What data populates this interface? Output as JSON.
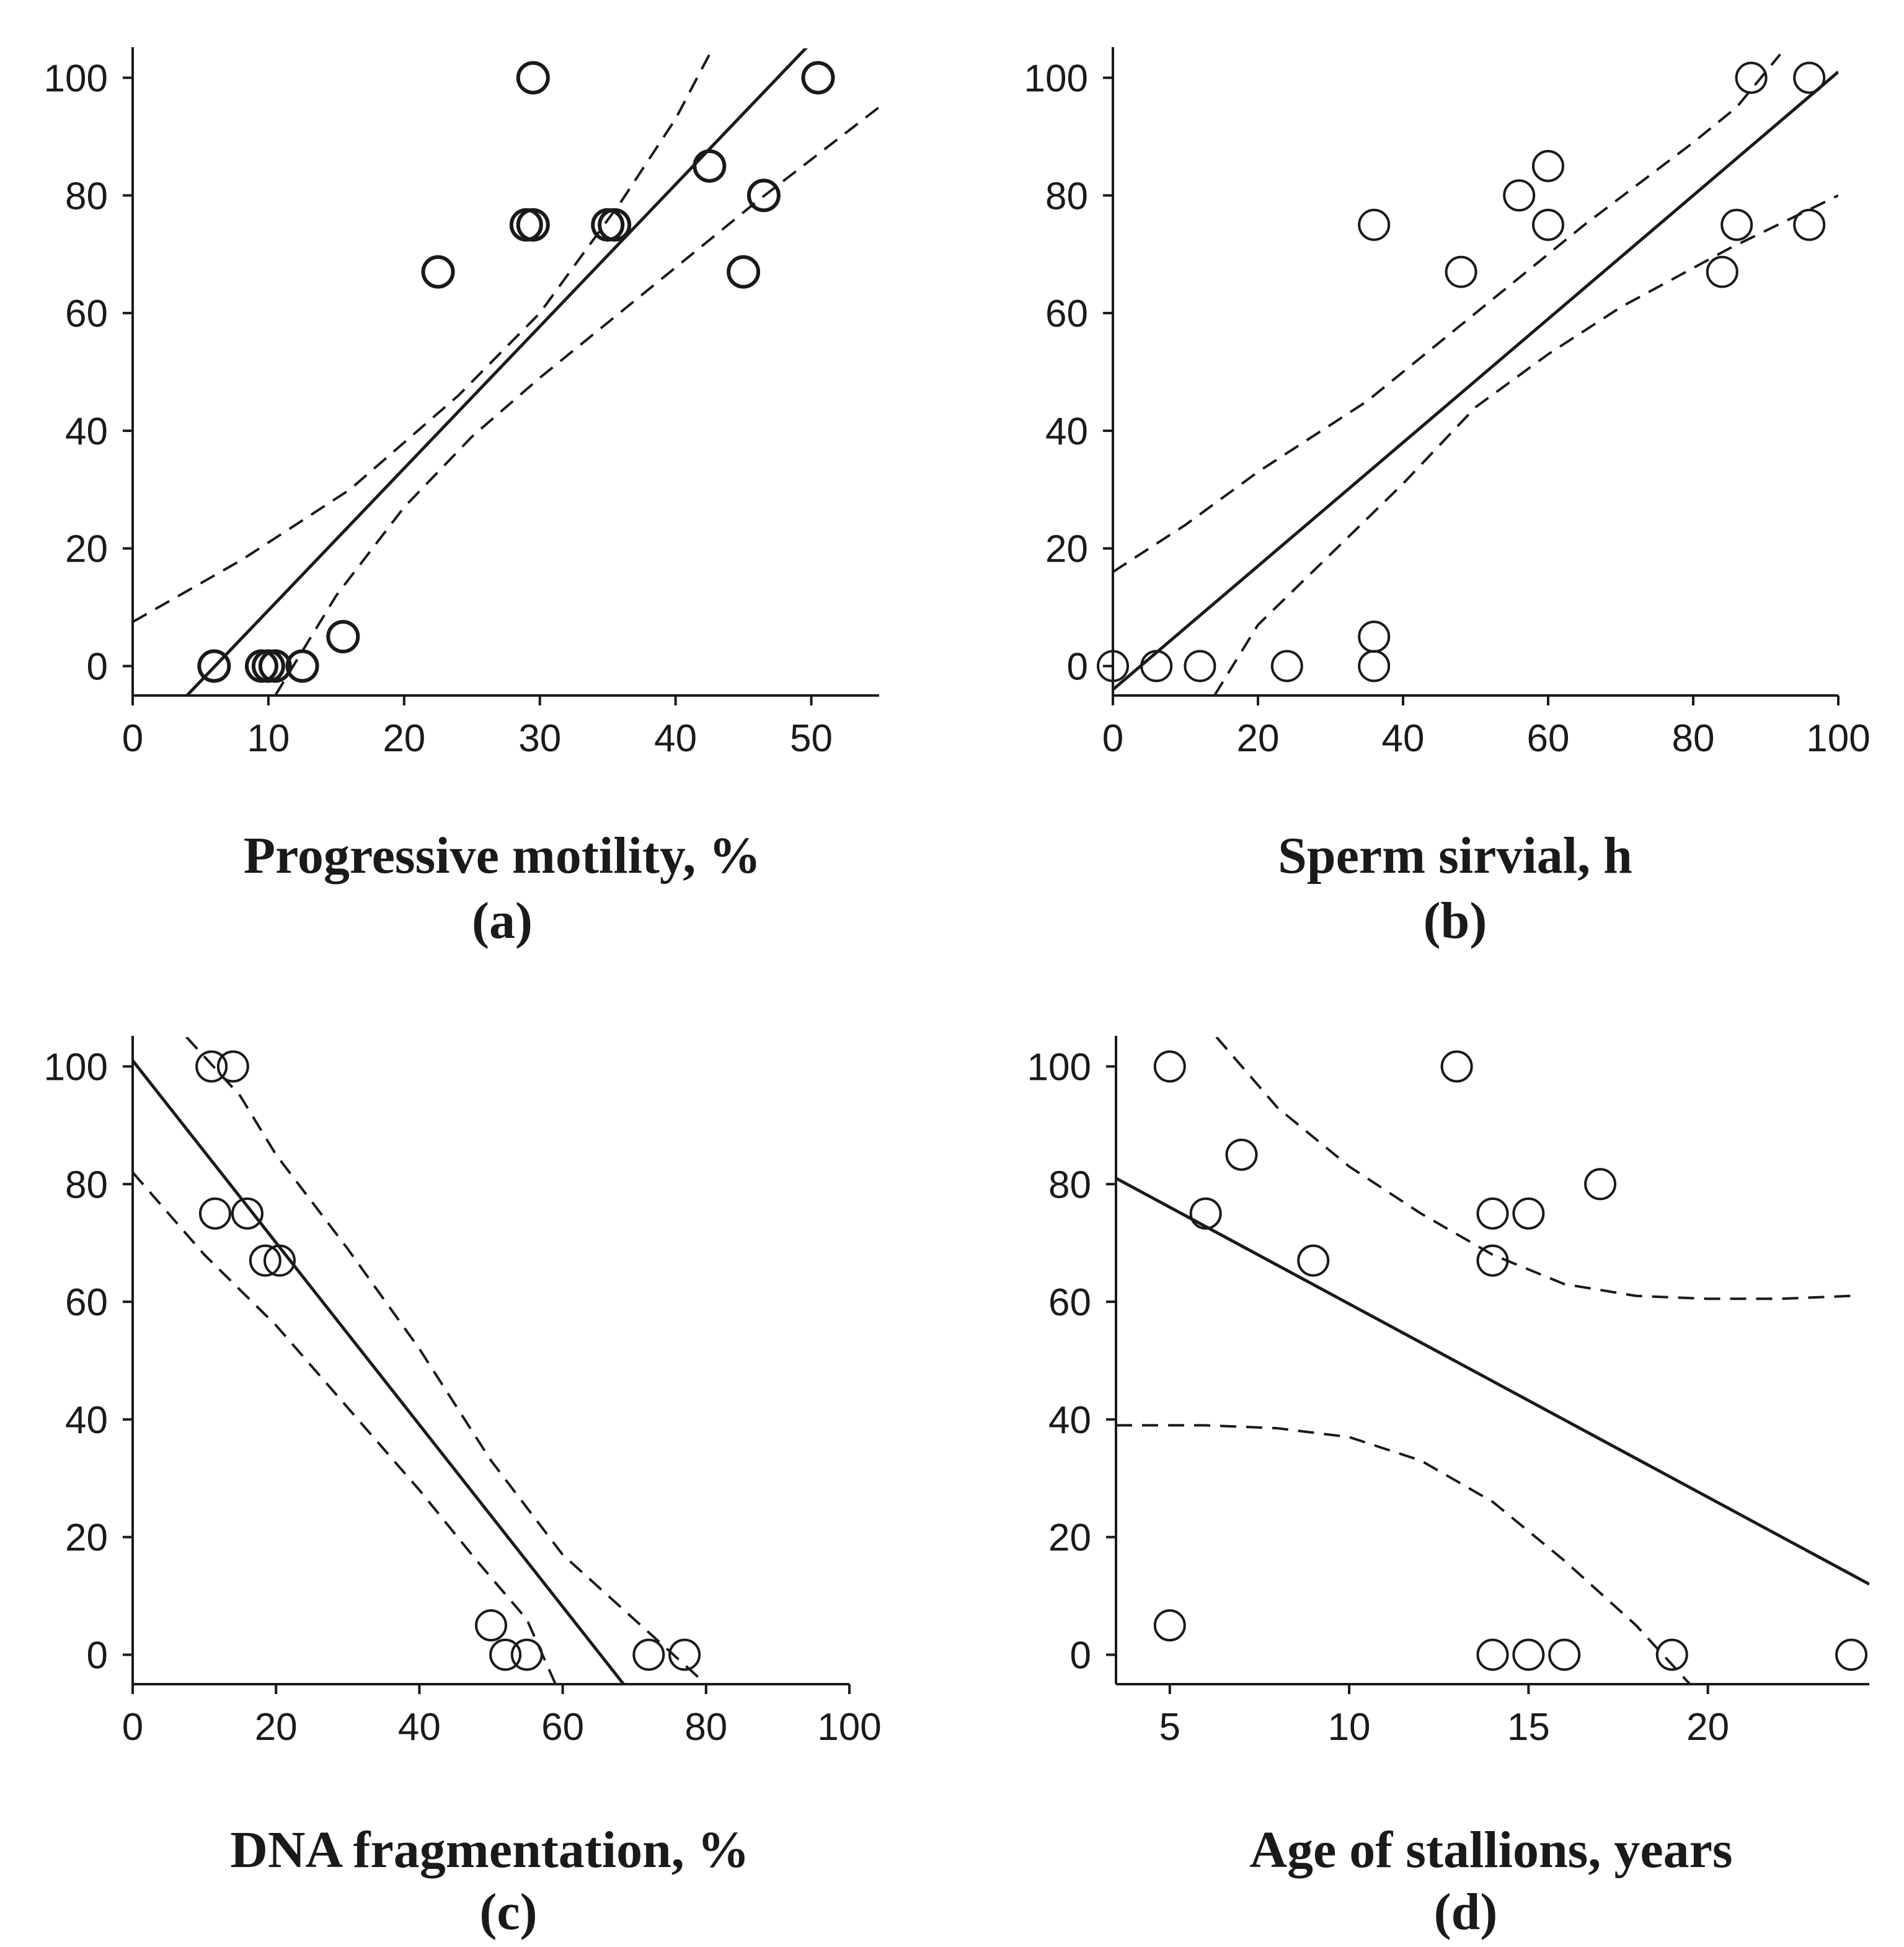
{
  "figure_title": "",
  "chart_data": [
    {
      "id": "a",
      "type": "scatter",
      "panel_label": "(a)",
      "xlabel": "Progressive motility, %",
      "ylabel": "",
      "xlim": [
        0,
        55
      ],
      "ylim": [
        -5,
        105
      ],
      "xticks": [
        0,
        10,
        20,
        30,
        40,
        50
      ],
      "yticks": [
        0,
        20,
        40,
        60,
        80,
        100
      ],
      "points": [
        {
          "x": 6,
          "y": 0
        },
        {
          "x": 9.5,
          "y": 0
        },
        {
          "x": 10,
          "y": 0
        },
        {
          "x": 10.5,
          "y": 0
        },
        {
          "x": 12.5,
          "y": 0
        },
        {
          "x": 15.5,
          "y": 5
        },
        {
          "x": 22.5,
          "y": 67
        },
        {
          "x": 29,
          "y": 75
        },
        {
          "x": 29.5,
          "y": 75
        },
        {
          "x": 29.5,
          "y": 100
        },
        {
          "x": 35,
          "y": 75
        },
        {
          "x": 35.5,
          "y": 75
        },
        {
          "x": 42.5,
          "y": 85
        },
        {
          "x": 45,
          "y": 67
        },
        {
          "x": 46.5,
          "y": 80
        },
        {
          "x": 50.5,
          "y": 100
        }
      ],
      "fit_line": [
        [
          4,
          -5
        ],
        [
          50,
          106
        ]
      ],
      "ci_upper": [
        [
          0,
          7.5
        ],
        [
          8,
          18
        ],
        [
          16,
          30
        ],
        [
          24,
          46
        ],
        [
          30,
          60
        ],
        [
          36,
          79
        ],
        [
          40,
          93
        ],
        [
          42.5,
          104
        ]
      ],
      "ci_lower": [
        [
          10.5,
          -5
        ],
        [
          15,
          12
        ],
        [
          20,
          27
        ],
        [
          25,
          39
        ],
        [
          30,
          49
        ],
        [
          38,
          64
        ],
        [
          46,
          79
        ],
        [
          55,
          95
        ]
      ]
    },
    {
      "id": "b",
      "type": "scatter",
      "panel_label": "(b)",
      "xlabel": "Sperm sirvial, h",
      "ylabel": "",
      "xlim": [
        0,
        100
      ],
      "ylim": [
        -5,
        105
      ],
      "xticks": [
        0,
        20,
        40,
        60,
        80,
        100
      ],
      "yticks": [
        0,
        20,
        40,
        60,
        80,
        100
      ],
      "points": [
        {
          "x": 0,
          "y": 0
        },
        {
          "x": 6,
          "y": 0
        },
        {
          "x": 12,
          "y": 0
        },
        {
          "x": 24,
          "y": 0
        },
        {
          "x": 36,
          "y": 0
        },
        {
          "x": 36,
          "y": 5
        },
        {
          "x": 36,
          "y": 75
        },
        {
          "x": 48,
          "y": 67
        },
        {
          "x": 56,
          "y": 80
        },
        {
          "x": 60,
          "y": 75
        },
        {
          "x": 60,
          "y": 85
        },
        {
          "x": 84,
          "y": 67
        },
        {
          "x": 86,
          "y": 75
        },
        {
          "x": 88,
          "y": 100
        },
        {
          "x": 96,
          "y": 100
        },
        {
          "x": 96,
          "y": 75
        }
      ],
      "fit_line": [
        [
          0,
          -4
        ],
        [
          100,
          101
        ]
      ],
      "ci_upper": [
        [
          0,
          16
        ],
        [
          10,
          24
        ],
        [
          20,
          33
        ],
        [
          35,
          45
        ],
        [
          50,
          60
        ],
        [
          65,
          75
        ],
        [
          80,
          89
        ],
        [
          86,
          95
        ],
        [
          92,
          104
        ]
      ],
      "ci_lower": [
        [
          14,
          -5
        ],
        [
          20,
          7
        ],
        [
          30,
          19
        ],
        [
          40,
          31
        ],
        [
          50,
          44
        ],
        [
          60,
          53
        ],
        [
          70,
          61
        ],
        [
          85,
          71
        ],
        [
          100,
          80
        ]
      ]
    },
    {
      "id": "c",
      "type": "scatter",
      "panel_label": "(c)",
      "xlabel": "DNA fragmentation, %",
      "ylabel": "",
      "xlim": [
        0,
        100
      ],
      "ylim": [
        -5,
        105
      ],
      "xticks": [
        0,
        20,
        40,
        60,
        80,
        100
      ],
      "yticks": [
        0,
        20,
        40,
        60,
        80,
        100
      ],
      "points": [
        {
          "x": 11,
          "y": 100
        },
        {
          "x": 14,
          "y": 100
        },
        {
          "x": 11.5,
          "y": 75
        },
        {
          "x": 16,
          "y": 75
        },
        {
          "x": 18.5,
          "y": 67
        },
        {
          "x": 20.5,
          "y": 67
        },
        {
          "x": 50,
          "y": 5
        },
        {
          "x": 52,
          "y": 0
        },
        {
          "x": 55,
          "y": 0
        },
        {
          "x": 72,
          "y": 0
        },
        {
          "x": 77,
          "y": 0
        }
      ],
      "fit_line": [
        [
          0,
          101
        ],
        [
          68.5,
          -5
        ]
      ],
      "ci_upper": [
        [
          7.5,
          105
        ],
        [
          15,
          95
        ],
        [
          20,
          85
        ],
        [
          30,
          69
        ],
        [
          40,
          52
        ],
        [
          50,
          33
        ],
        [
          60,
          17
        ],
        [
          70,
          6
        ],
        [
          80,
          -5
        ]
      ],
      "ci_lower": [
        [
          0,
          82
        ],
        [
          10,
          68
        ],
        [
          20,
          56
        ],
        [
          30,
          42
        ],
        [
          40,
          28
        ],
        [
          48,
          16
        ],
        [
          55,
          6
        ],
        [
          59,
          -5
        ]
      ]
    },
    {
      "id": "d",
      "type": "scatter",
      "panel_label": "(d)",
      "xlabel": "Age of stallions, years",
      "ylabel": "",
      "xlim": [
        3.5,
        24.5
      ],
      "ylim": [
        -5,
        105
      ],
      "xticks": [
        5,
        10,
        15,
        20
      ],
      "yticks": [
        0,
        20,
        40,
        60,
        80,
        100
      ],
      "points": [
        {
          "x": 5,
          "y": 100
        },
        {
          "x": 5,
          "y": 5
        },
        {
          "x": 6,
          "y": 75
        },
        {
          "x": 7,
          "y": 85
        },
        {
          "x": 9,
          "y": 67
        },
        {
          "x": 13,
          "y": 100
        },
        {
          "x": 14,
          "y": 75
        },
        {
          "x": 14,
          "y": 67
        },
        {
          "x": 15,
          "y": 75
        },
        {
          "x": 17,
          "y": 80
        },
        {
          "x": 14,
          "y": 0
        },
        {
          "x": 15,
          "y": 0
        },
        {
          "x": 16,
          "y": 0
        },
        {
          "x": 19,
          "y": 0
        },
        {
          "x": 24,
          "y": 0
        }
      ],
      "fit_line": [
        [
          3.5,
          81
        ],
        [
          24.5,
          12
        ]
      ],
      "ci_upper": [
        [
          6.3,
          105
        ],
        [
          8,
          93
        ],
        [
          10,
          83
        ],
        [
          12,
          75
        ],
        [
          14,
          68
        ],
        [
          16,
          63
        ],
        [
          18,
          61
        ],
        [
          20,
          60.5
        ],
        [
          22,
          60.5
        ],
        [
          24,
          61
        ]
      ],
      "ci_lower": [
        [
          3.5,
          39
        ],
        [
          6,
          39
        ],
        [
          8,
          38.5
        ],
        [
          10,
          37
        ],
        [
          12,
          33
        ],
        [
          14,
          26
        ],
        [
          16,
          16
        ],
        [
          18,
          5
        ],
        [
          19.5,
          -5
        ]
      ]
    }
  ]
}
